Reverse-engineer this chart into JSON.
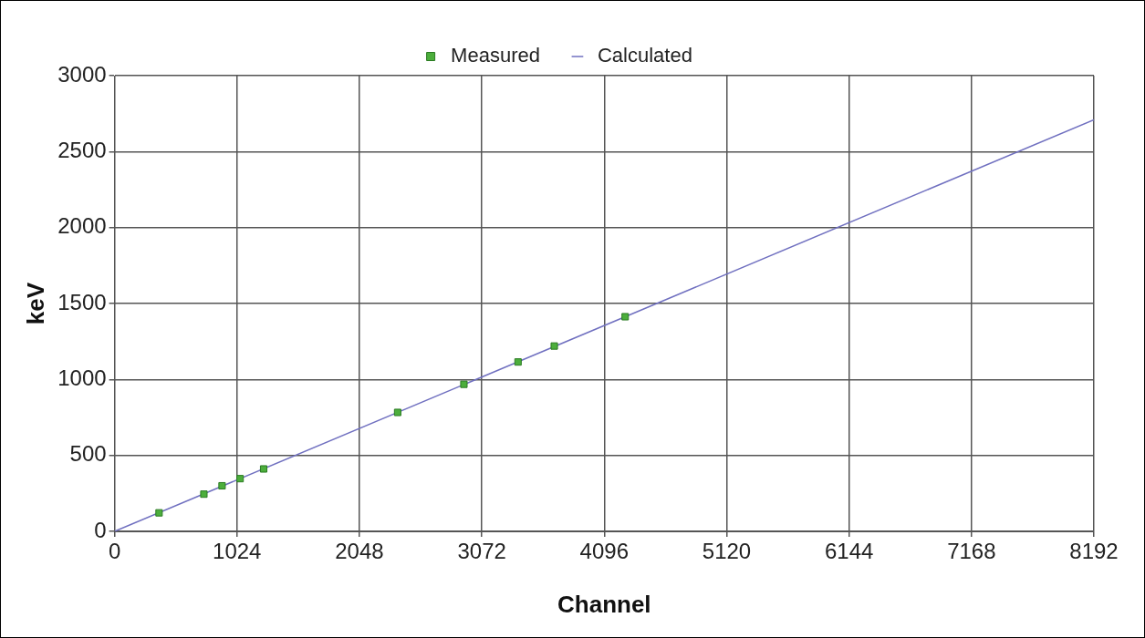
{
  "chart_data": {
    "type": "scatter",
    "xlabel": "Channel",
    "ylabel": "keV",
    "xlim": [
      0,
      8192
    ],
    "xticks": [
      0,
      1024,
      2048,
      3072,
      4096,
      5120,
      6144,
      7168,
      8192
    ],
    "ylim": [
      0,
      3000
    ],
    "yticks": [
      0,
      500,
      1000,
      1500,
      2000,
      2500,
      3000
    ],
    "grid": true,
    "legend": "top",
    "series": [
      {
        "name": "Measured",
        "marker": "square",
        "color": "#4cae3c",
        "x": [
          372,
          747,
          899,
          1050,
          1247,
          2368,
          2922,
          3375,
          3678,
          4271
        ],
        "values": [
          122,
          245,
          300,
          347,
          411,
          783,
          968,
          1115,
          1220,
          1413
        ]
      },
      {
        "name": "Calculated",
        "type": "line",
        "marker": "none",
        "color": "#7070c0",
        "x": [
          0,
          8192
        ],
        "values": [
          0,
          2710
        ]
      }
    ]
  }
}
